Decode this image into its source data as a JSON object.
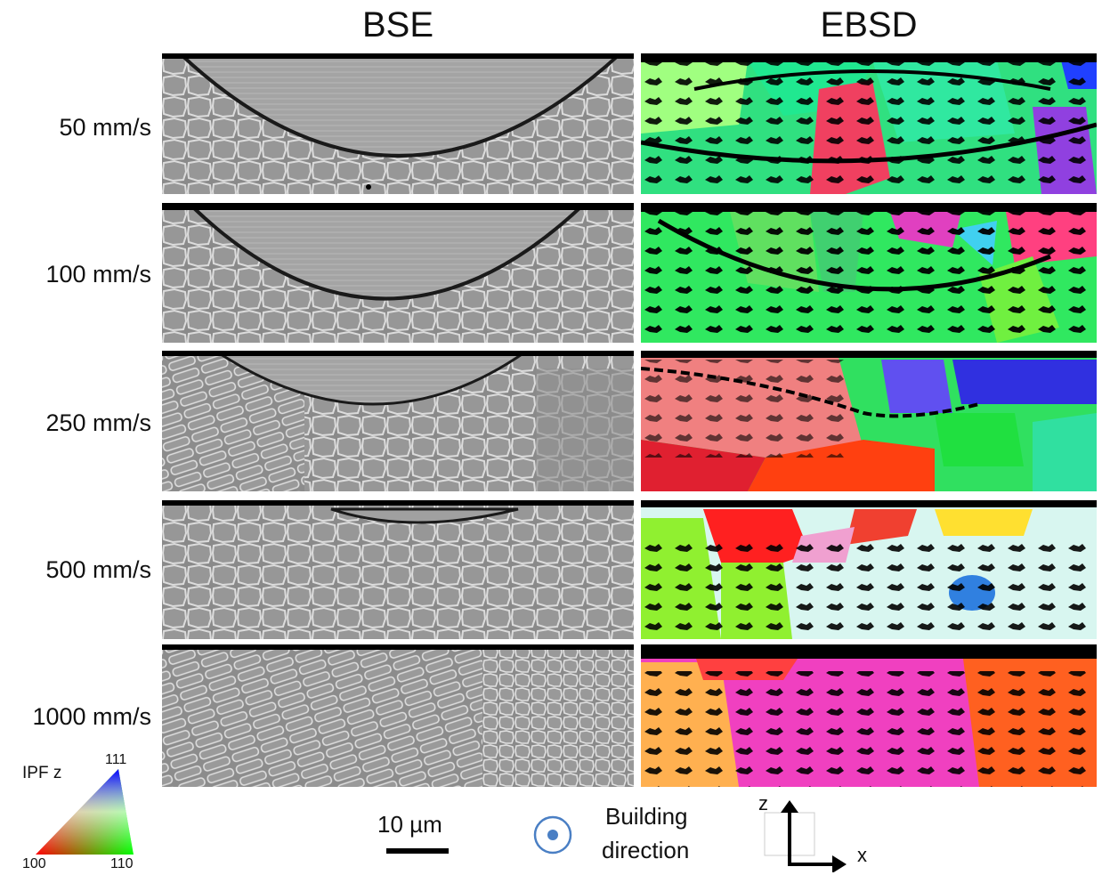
{
  "columns": {
    "left": "BSE",
    "right": "EBSD"
  },
  "rows": [
    {
      "label": "50 mm/s"
    },
    {
      "label": "100 mm/s"
    },
    {
      "label": "250 mm/s"
    },
    {
      "label": "500 mm/s"
    },
    {
      "label": "1000 mm/s"
    }
  ],
  "ipf_legend": {
    "title": "IPF z",
    "corner_top": "111",
    "corner_left": "100",
    "corner_right": "110"
  },
  "scale_bar": {
    "label": "10 µm"
  },
  "building_direction": {
    "line1": "Building",
    "line2": "direction"
  },
  "axes": {
    "vertical": "z",
    "horizontal": "x"
  },
  "colors": {
    "bse_bg": "#8f8f8f",
    "black": "#000000",
    "bd_symbol": "#4a7fc4"
  }
}
